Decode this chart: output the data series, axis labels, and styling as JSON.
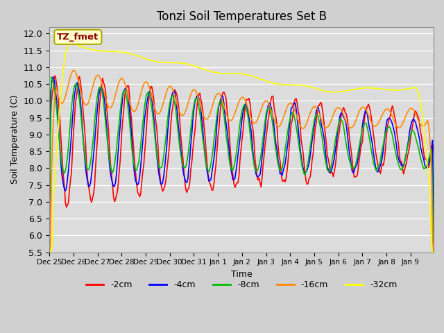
{
  "title": "Tonzi Soil Temperatures Set B",
  "xlabel": "Time",
  "ylabel": "Soil Temperature (C)",
  "ylim": [
    5.5,
    12.2
  ],
  "annotation": "TZ_fmet",
  "annotation_color": "#8B0000",
  "annotation_bg": "#FFFFCC",
  "colors": {
    "-2cm": "#FF0000",
    "-4cm": "#0000FF",
    "-8cm": "#00BB00",
    "-16cm": "#FF8800",
    "-32cm": "#FFFF00"
  },
  "legend_labels": [
    "-2cm",
    "-4cm",
    "-8cm",
    "-16cm",
    "-32cm"
  ],
  "xtick_labels": [
    "Dec 25",
    "Dec 26",
    "Dec 27",
    "Dec 28",
    "Dec 29",
    "Dec 30",
    "Dec 31",
    "Jan 1",
    "Jan 2",
    "Jan 3",
    "Jan 4",
    "Jan 5",
    "Jan 6",
    "Jan 7",
    "Jan 8",
    "Jan 9"
  ],
  "fig_bg": "#D0D0D0",
  "axes_bg": "#DCDCDC"
}
